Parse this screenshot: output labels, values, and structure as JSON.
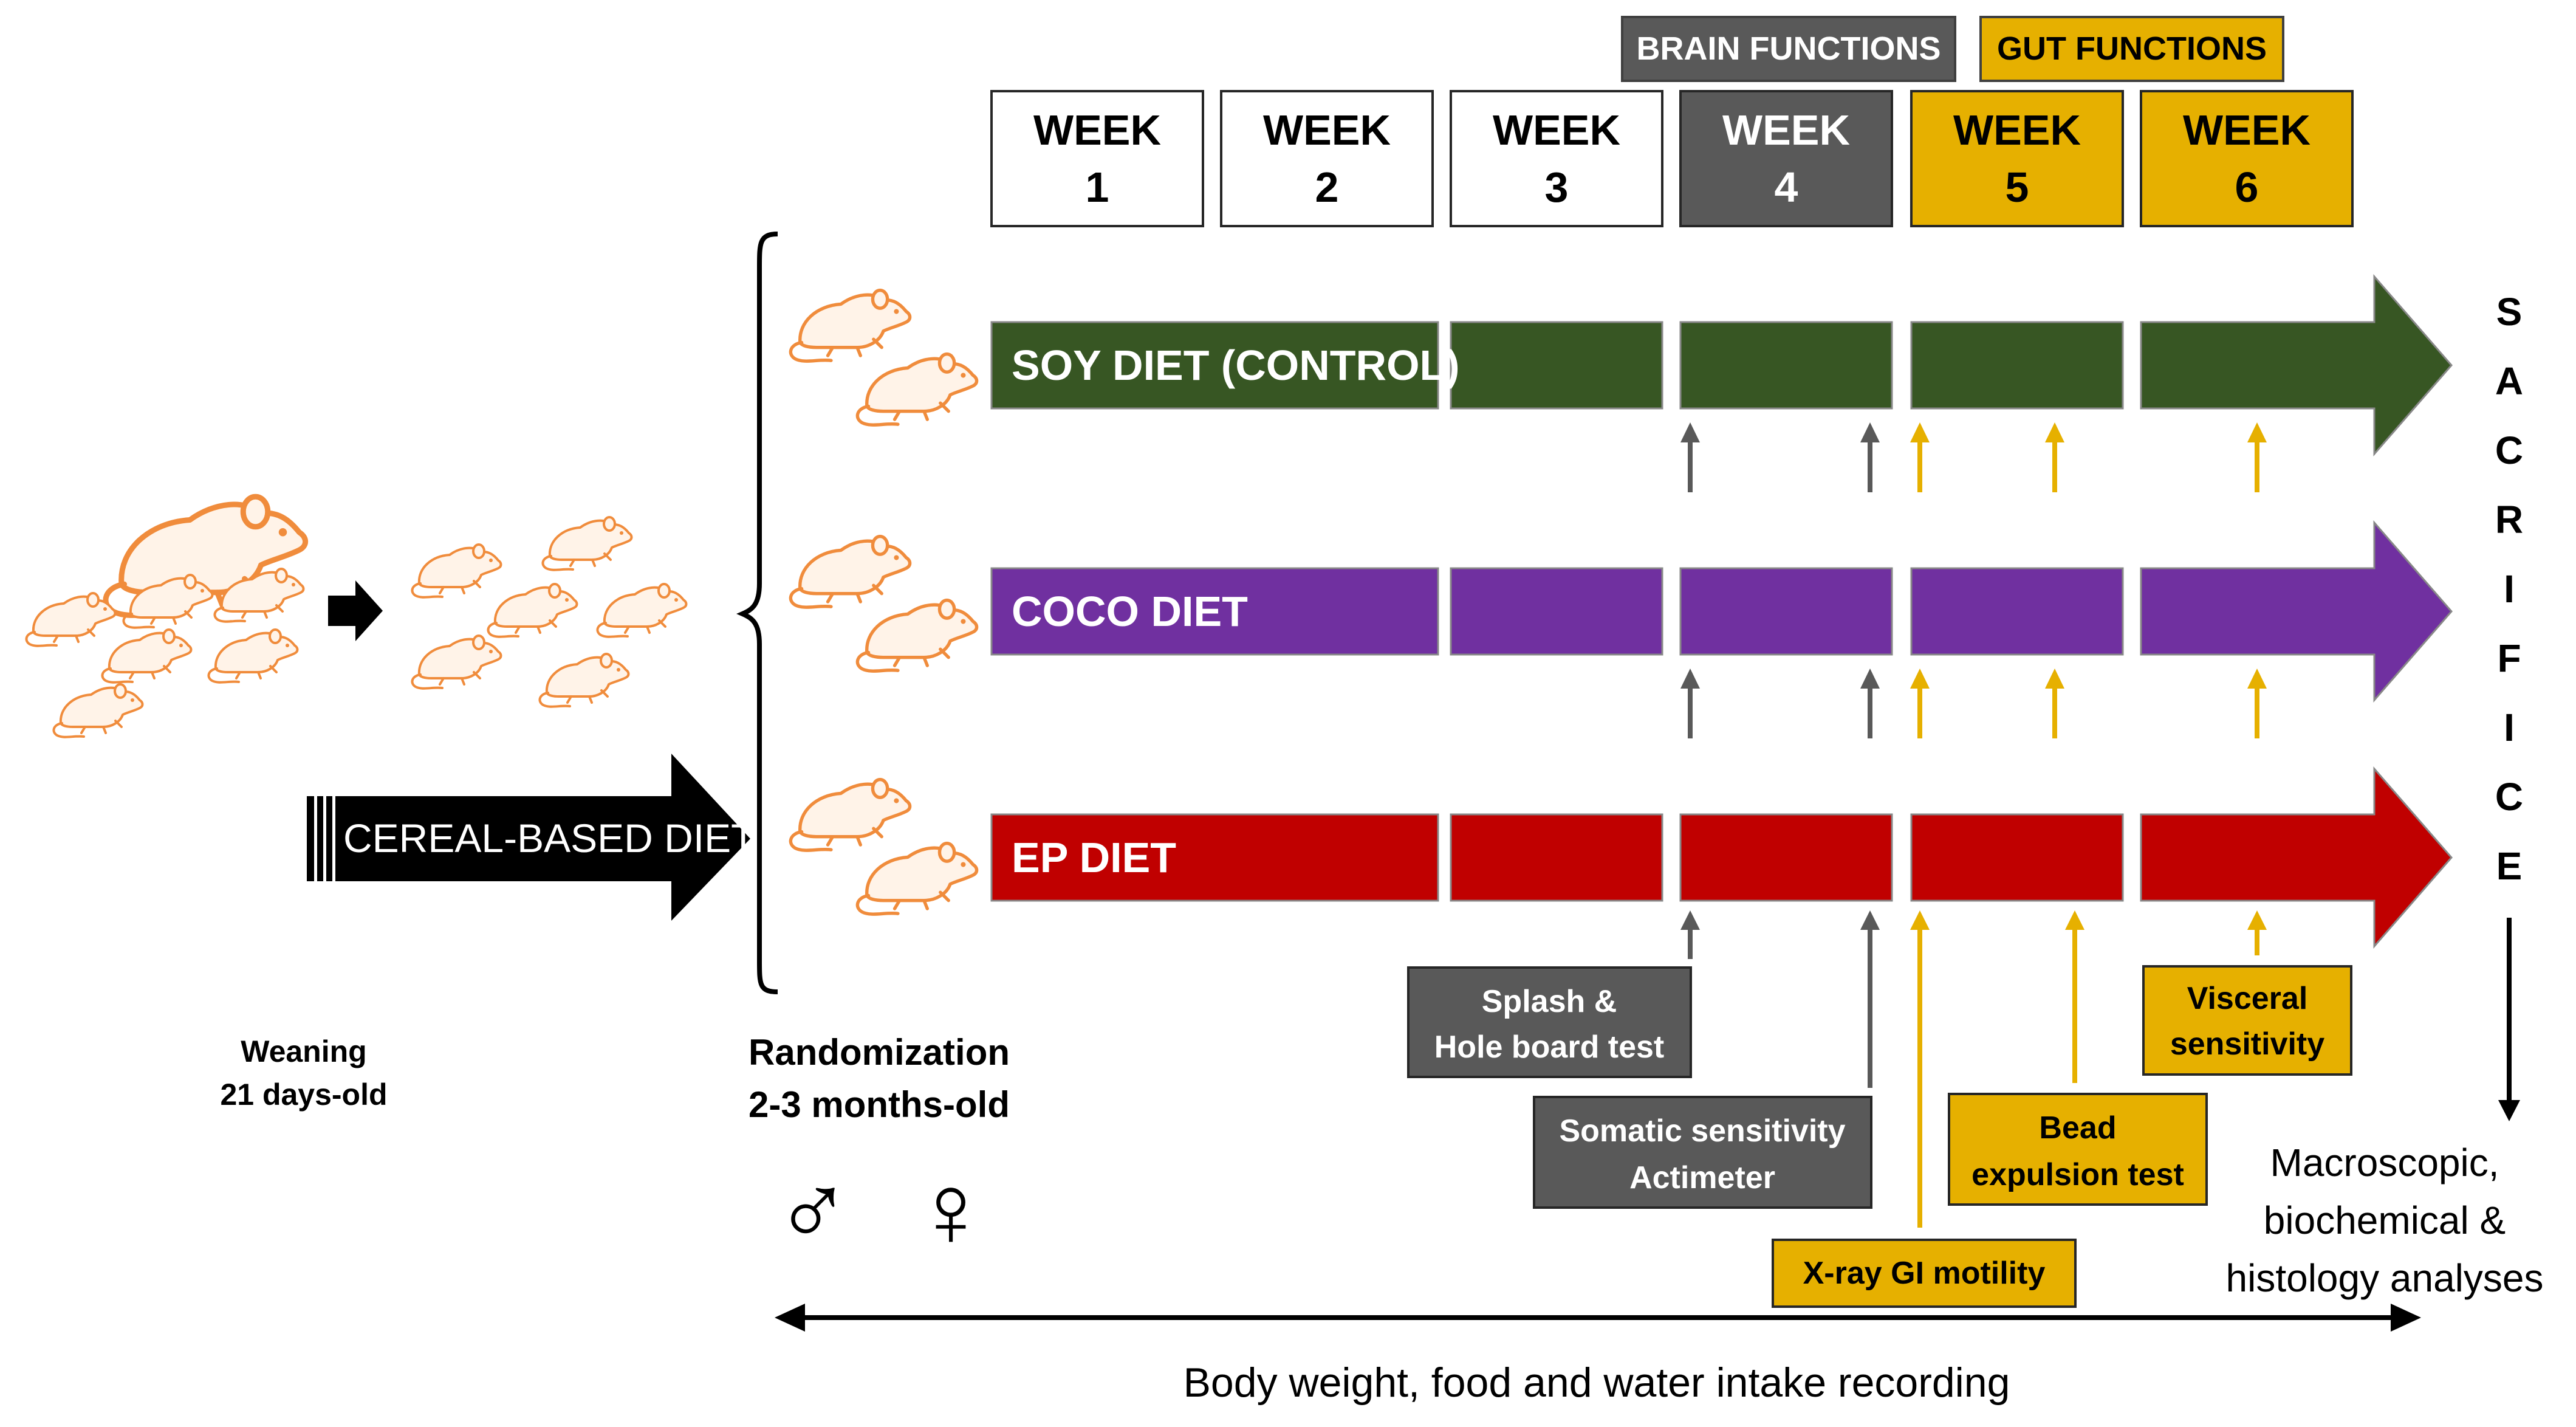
{
  "headers": {
    "brain": "BRAIN FUNCTIONS",
    "gut": "GUT FUNCTIONS"
  },
  "weeks": [
    {
      "top": "WEEK",
      "num": "1",
      "style": "white"
    },
    {
      "top": "WEEK",
      "num": "2",
      "style": "white"
    },
    {
      "top": "WEEK",
      "num": "3",
      "style": "white"
    },
    {
      "top": "WEEK",
      "num": "4",
      "style": "gray"
    },
    {
      "top": "WEEK",
      "num": "5",
      "style": "gold"
    },
    {
      "top": "WEEK",
      "num": "6",
      "style": "gold"
    }
  ],
  "diets": [
    {
      "label": "SOY DIET (CONTROL)",
      "color": "#375623"
    },
    {
      "label": "COCO DIET",
      "color": "#7030A0"
    },
    {
      "label": "EP DIET",
      "color": "#C00000"
    }
  ],
  "sacrifice": "SACRIFICE",
  "cereal": "CEREAL-BASED DIET",
  "weaning": {
    "line1": "Weaning",
    "line2": "21 days-old"
  },
  "randomization": {
    "line1": "Randomization",
    "line2": "2-3 months-old"
  },
  "sex_symbols": {
    "male": "♂",
    "female": "♀"
  },
  "tests": {
    "splash": {
      "line1": "Splash &",
      "line2": "Hole board test"
    },
    "somatic": {
      "line1": "Somatic sensitivity",
      "line2": "Actimeter"
    },
    "xray": {
      "line1": "X-ray GI motility"
    },
    "bead": {
      "line1": "Bead",
      "line2": "expulsion test"
    },
    "visceral": {
      "line1": "Visceral",
      "line2": "sensitivity"
    }
  },
  "analyses": {
    "line1": "Macroscopic,",
    "line2": "biochemical &",
    "line3": "histology analyses"
  },
  "bottom_label": "Body weight, food and water intake recording",
  "colors": {
    "gray": "#595959",
    "gold": "#E6B000",
    "mouse": "#F08C3C",
    "black": "#000000"
  }
}
